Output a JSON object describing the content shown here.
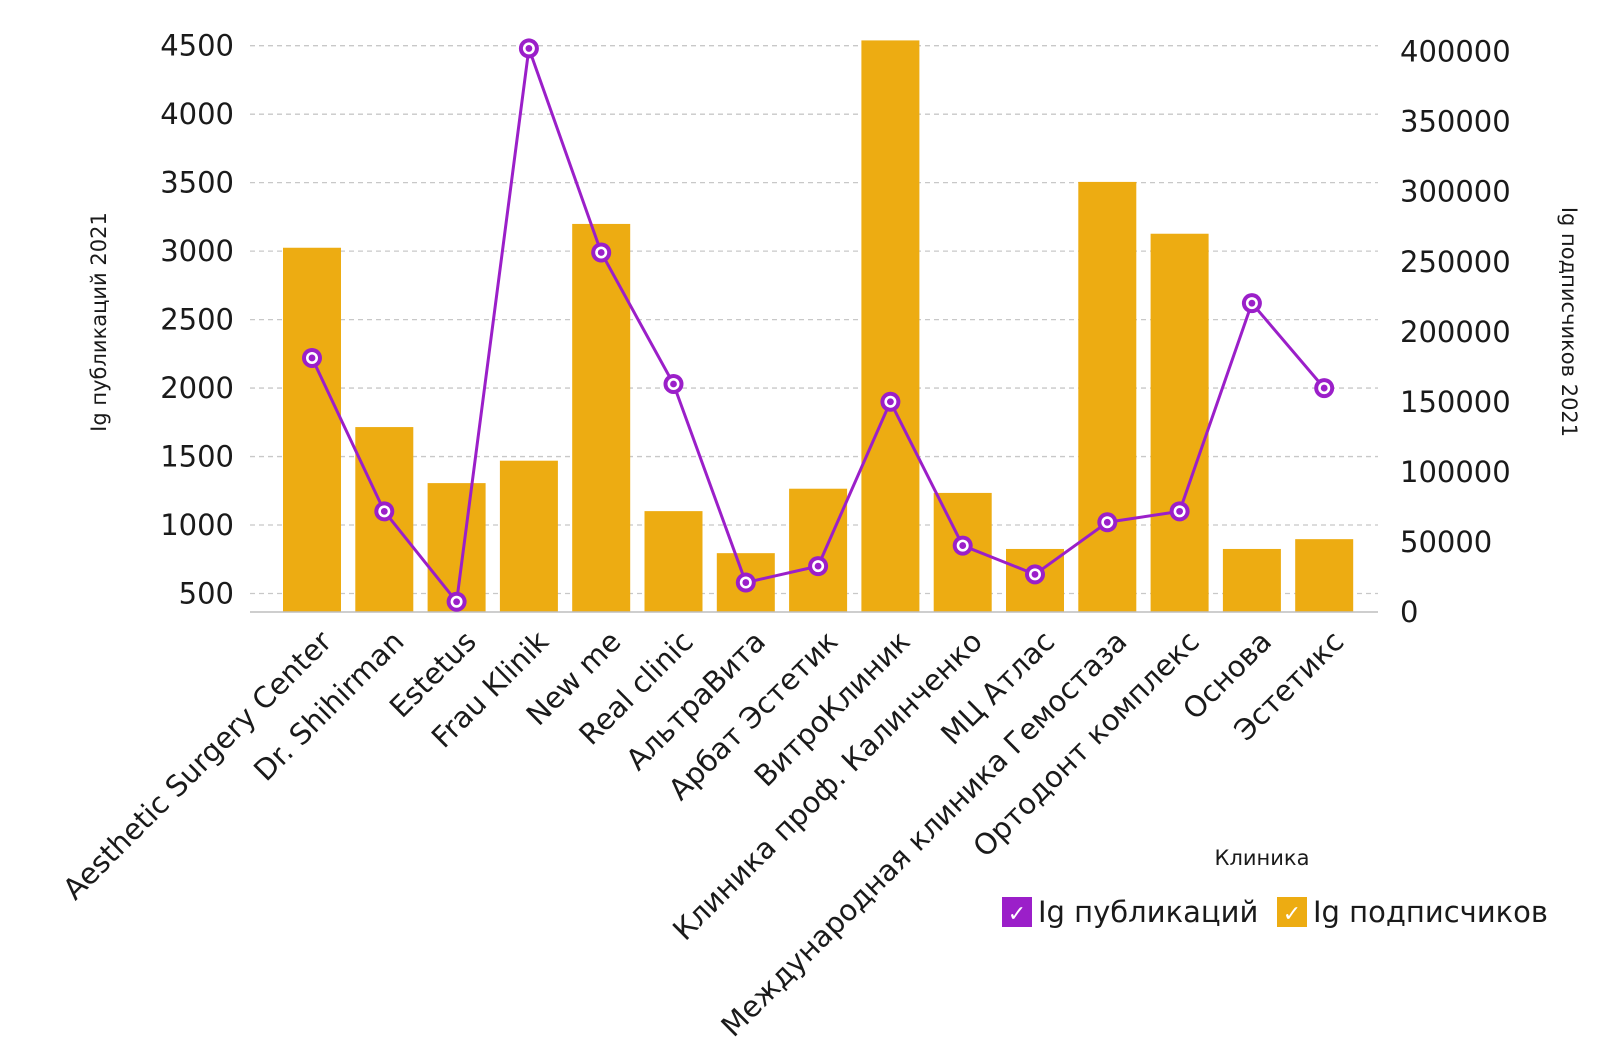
{
  "chart_data": {
    "type": "bar",
    "combo": "bar + line (dual axis)",
    "categories": [
      "Aesthetic Surgery Center",
      "Dr. Shihirman",
      "Estetus",
      "Frau Klinik",
      "New me",
      "Real clinic",
      "АльтраВита",
      "Арбат Эстетик",
      "ВитроКлиник",
      "Клиника проф. Калинченко",
      "МЦ Атлас",
      "Международная клиника Гемостаза",
      "Ортодонт комплекс",
      "Основа",
      "Эстетикс"
    ],
    "xlabel": "Клиника",
    "ylabel_left": "Ig публикаций 2021",
    "ylabel_right": "Ig подписчиков 2021",
    "ylim_left": [
      365,
      4600
    ],
    "yticks_left": [
      500,
      1000,
      1500,
      2000,
      2500,
      3000,
      3500,
      4000,
      4500
    ],
    "ylim_right": [
      0,
      414000
    ],
    "yticks_right": [
      0,
      50000,
      100000,
      150000,
      200000,
      250000,
      300000,
      350000,
      400000
    ],
    "grid": true,
    "legend_position": "bottom-right",
    "series": [
      {
        "name": "Ig публикаций",
        "type": "line",
        "axis": "left",
        "color": "#9b1fc9",
        "values": [
          2220,
          1100,
          440,
          4480,
          2990,
          2030,
          580,
          700,
          1900,
          850,
          640,
          1020,
          1100,
          2620,
          2000
        ]
      },
      {
        "name": "Ig подписчиков",
        "type": "bar",
        "axis": "right",
        "color": "#edac12",
        "values": [
          260000,
          132000,
          92000,
          108000,
          277000,
          72000,
          42000,
          88000,
          408000,
          85000,
          45000,
          307000,
          270000,
          45000,
          52000
        ]
      }
    ]
  }
}
